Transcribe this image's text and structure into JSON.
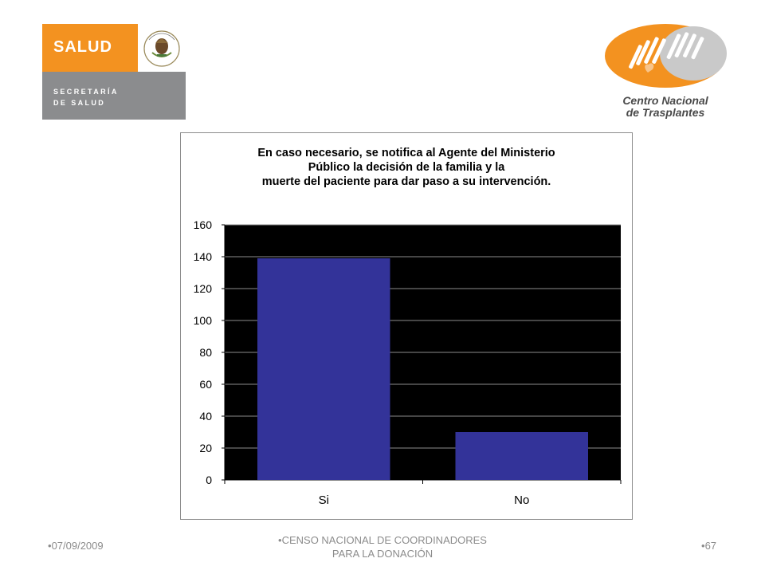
{
  "header": {
    "salud_logo": {
      "word": "SALUD",
      "sub_line1": "SECRETARÍA",
      "sub_line2": "DE SALUD",
      "brand_color": "#f39220",
      "sub_color": "#8b8c8e"
    },
    "cnt_logo": {
      "line1": "Centro Nacional",
      "line2": "de Trasplantes",
      "brand_color": "#f39220"
    }
  },
  "chart_data": {
    "type": "bar",
    "title_lines": [
      "En caso necesario, se notifica al Agente del Ministerio",
      "Público la decisión de la familia y la",
      "muerte del paciente para dar paso a su intervención."
    ],
    "categories": [
      "Si",
      "No"
    ],
    "values": [
      139,
      30
    ],
    "ylim": [
      0,
      160
    ],
    "yticks": [
      0,
      20,
      40,
      60,
      80,
      100,
      120,
      140,
      160
    ],
    "grid": true,
    "legend": "none",
    "plot_background": "#000000",
    "bar_color": "#333399",
    "gridline_color": "#8c8c8c"
  },
  "footer": {
    "date": "07/09/2009",
    "title_line1": "CENSO NACIONAL DE COORDINADORES",
    "title_line2": "PARA LA DONACIÓN",
    "page": "67"
  }
}
